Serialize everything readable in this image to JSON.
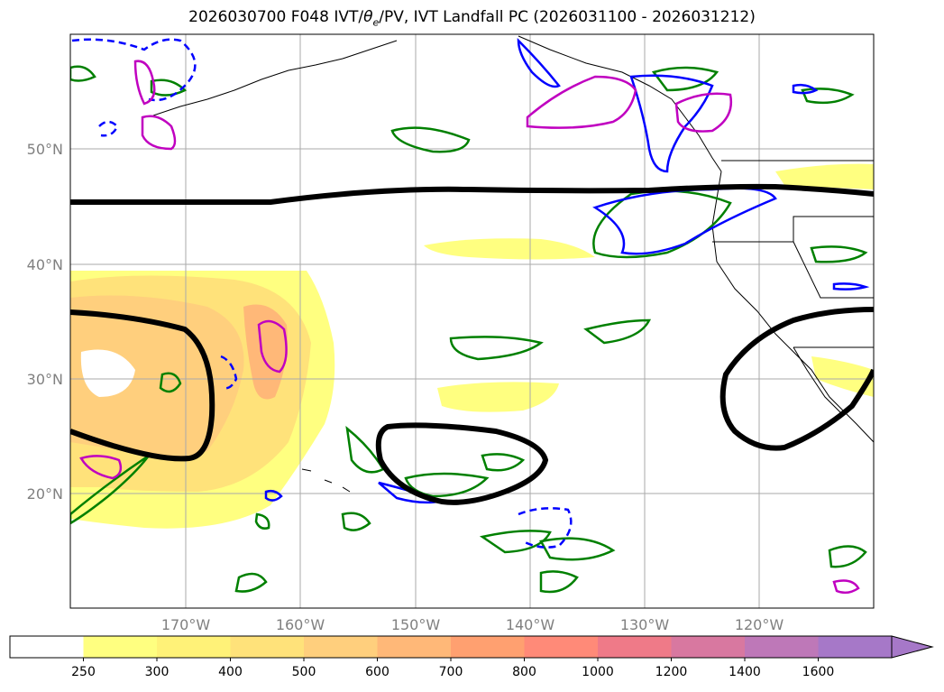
{
  "title": {
    "prefix": "2026030700 F048 IVT/",
    "theta": "θ",
    "theta_sub": "e",
    "suffix": "/PV, IVT Landfall PC (2026031100 - 2026031212)"
  },
  "map": {
    "lat_labels": [
      "50°N",
      "40°N",
      "30°N",
      "20°N"
    ],
    "lon_labels": [
      "170°W",
      "160°W",
      "150°W",
      "140°W",
      "130°W",
      "120°W"
    ]
  },
  "colorbar": {
    "ticks": [
      "250",
      "300",
      "400",
      "500",
      "600",
      "700",
      "800",
      "1000",
      "1200",
      "1400",
      "1600"
    ],
    "colors": [
      "#ffffff",
      "#ffff80",
      "#fff278",
      "#ffe27a",
      "#ffcf7d",
      "#ffb878",
      "#ffa070",
      "#ff8a78",
      "#ef7a88",
      "#d878a0",
      "#be78b8",
      "#a678c8"
    ]
  },
  "colors": {
    "ivt_fill_1": "#ffff80",
    "ivt_fill_2": "#ffe27a",
    "ivt_fill_3": "#ffc47a",
    "ivt_fill_4": "#ffa878",
    "pc_contour": "#000000",
    "theta_contour": "#008000",
    "pv_positive": "#0000ff",
    "pv_magenta": "#c000c0",
    "coastline": "#000000"
  }
}
